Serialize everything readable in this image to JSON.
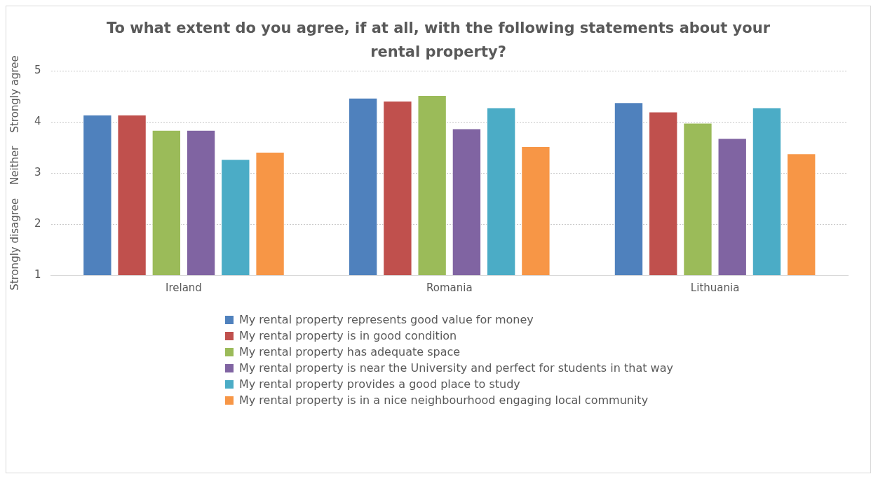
{
  "chart_data": {
    "type": "bar",
    "title": "To what extent do you agree, if at all, with the following statements about your rental property?",
    "ylabel": "Strongly disagree    Neither    Strongly agree",
    "categories": [
      "Ireland",
      "Romania",
      "Lithuania"
    ],
    "series": [
      {
        "name": "My rental property represents good value for money",
        "color": "#4f81bd",
        "values": [
          4.14,
          4.47,
          4.38
        ]
      },
      {
        "name": "My rental property is in good condition",
        "color": "#c0504d",
        "values": [
          4.14,
          4.41,
          4.2
        ]
      },
      {
        "name": "My rental property has adequate space",
        "color": "#9bbb59",
        "values": [
          3.84,
          4.52,
          3.98
        ]
      },
      {
        "name": "My rental property is near the University and perfect for students in that way",
        "color": "#8064a2",
        "values": [
          3.84,
          3.87,
          3.68
        ]
      },
      {
        "name": "My rental property provides a good place to study",
        "color": "#4bacc6",
        "values": [
          3.27,
          4.28,
          4.28
        ]
      },
      {
        "name": "My rental property is in a nice neighbourhood engaging local community",
        "color": "#f79646",
        "values": [
          3.41,
          3.52,
          3.38
        ]
      }
    ],
    "ylim": [
      1,
      5
    ],
    "yticks": [
      1,
      2,
      3,
      4,
      5
    ],
    "grid": "y",
    "legend": "bottom"
  }
}
